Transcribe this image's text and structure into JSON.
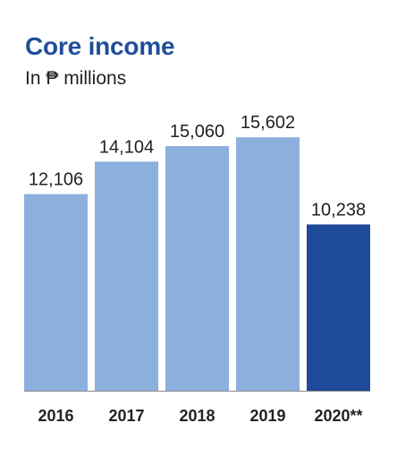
{
  "chart_data": {
    "type": "bar",
    "title": "Core income",
    "subtitle": "In ₱ millions",
    "xlabel": "",
    "ylabel": "",
    "categories": [
      "2016",
      "2017",
      "2018",
      "2019",
      "2020**"
    ],
    "values": [
      12106,
      14104,
      15060,
      15602,
      10238
    ],
    "value_labels": [
      "12,106",
      "14,104",
      "15,060",
      "15,602",
      "10,238"
    ],
    "ylim": [
      0,
      16000
    ],
    "grid": false,
    "legend": "none",
    "colors": {
      "bar": "#8cb0dd",
      "highlight_bar": "#1f4a9a",
      "title": "#1f4e9c",
      "text": "#222222"
    },
    "highlight_index": 4
  }
}
